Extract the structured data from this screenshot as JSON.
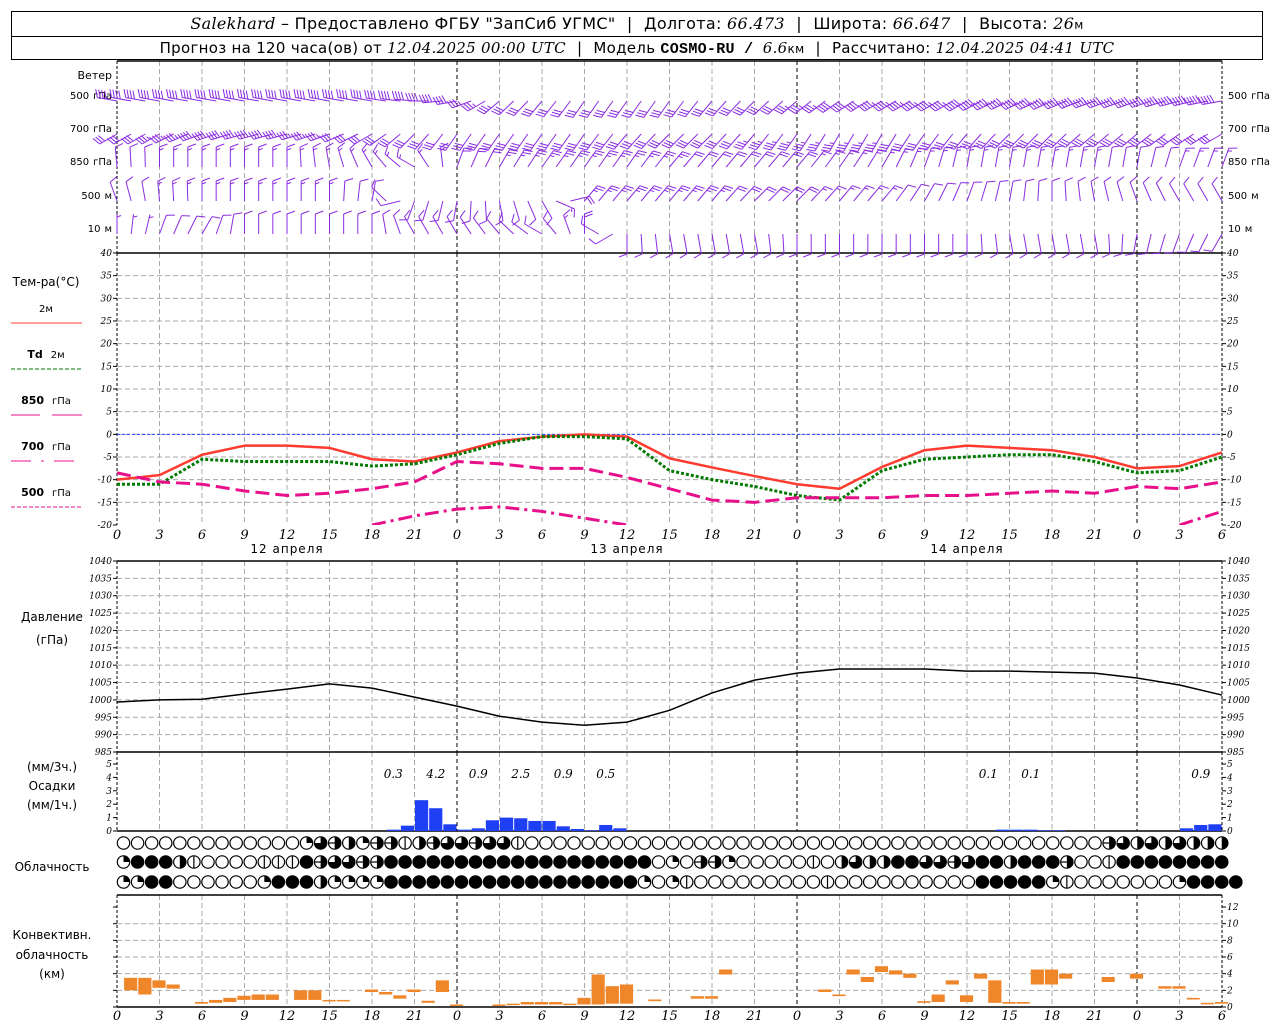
{
  "header": {
    "station": "Salekhard",
    "provider": "– Предоставлено ФГБУ \"ЗапСиб УГМС\"",
    "lon_label": "Долгота:",
    "lon": "66.473",
    "lat_label": "Широта:",
    "lat": "66.647",
    "alt_label": "Высота:",
    "alt": "26",
    "alt_unit": "м",
    "forecast_prefix": "Прогноз на 120 часа(ов) от",
    "forecast_start": "12.04.2025 00:00 UTC",
    "model_label": "Модель",
    "model": "COSMO-RU / ",
    "model_res": "6.6",
    "model_unit": "км",
    "calc_label": "Рассчитано:",
    "calc_time": "12.04.2025 04:41 UTC"
  },
  "axis": {
    "hour_labels": [
      "0",
      "3",
      "6",
      "9",
      "12",
      "15",
      "18",
      "21",
      "0",
      "3",
      "6",
      "9",
      "12",
      "15",
      "18",
      "21",
      "0",
      "3",
      "6",
      "9",
      "12",
      "15",
      "18",
      "21",
      "0",
      "3",
      "6"
    ],
    "date_labels": [
      "12 апреля",
      "13 апреля",
      "14 апреля"
    ],
    "date_hours": [
      12,
      36,
      60
    ]
  },
  "wind": {
    "title": "Ветер",
    "color": "#8a2be2",
    "levels": [
      {
        "num": "500",
        "unit": "гПа",
        "dir": [
          280,
          280,
          280,
          280,
          280,
          280,
          280,
          275,
          260,
          230,
          220,
          215,
          215,
          215,
          220,
          225,
          230,
          235,
          240,
          240,
          240,
          245,
          245,
          250,
          250,
          255,
          260
        ],
        "spd": [
          40,
          40,
          40,
          40,
          40,
          40,
          40,
          40,
          40,
          35,
          30,
          30,
          30,
          30,
          30,
          30,
          35,
          40,
          45,
          45,
          50,
          50,
          50,
          50,
          50,
          50,
          50
        ]
      },
      {
        "num": "700",
        "unit": "гПа",
        "dir": [
          240,
          240,
          250,
          255,
          255,
          250,
          240,
          225,
          215,
          215,
          215,
          215,
          220,
          225,
          225,
          220,
          215,
          210,
          210,
          215,
          220,
          225,
          225,
          230,
          230,
          235,
          240
        ],
        "spd": [
          30,
          35,
          40,
          40,
          40,
          35,
          30,
          30,
          30,
          30,
          30,
          30,
          30,
          30,
          30,
          35,
          35,
          35,
          35,
          30,
          30,
          30,
          30,
          30,
          30,
          30,
          30
        ]
      },
      {
        "num": "850",
        "unit": "гПа",
        "dir": [
          355,
          0,
          0,
          0,
          0,
          350,
          330,
          300,
          20,
          30,
          35,
          35,
          35,
          40,
          40,
          40,
          40,
          35,
          30,
          20,
          10,
          10,
          10,
          10,
          10,
          20,
          20
        ],
        "spd": [
          10,
          15,
          15,
          15,
          15,
          15,
          15,
          15,
          20,
          25,
          25,
          25,
          25,
          25,
          20,
          20,
          20,
          15,
          15,
          15,
          15,
          15,
          15,
          15,
          10,
          15,
          15
        ]
      },
      {
        "num": "500",
        "unit": "м",
        "dir": [
          340,
          355,
          0,
          0,
          0,
          0,
          10,
          200,
          190,
          170,
          150,
          40,
          40,
          40,
          40,
          45,
          45,
          40,
          40,
          30,
          20,
          10,
          0,
          350,
          340,
          330,
          330
        ],
        "spd": [
          10,
          15,
          15,
          15,
          15,
          15,
          10,
          10,
          10,
          10,
          10,
          25,
          25,
          25,
          25,
          20,
          20,
          15,
          15,
          10,
          10,
          10,
          10,
          10,
          10,
          10,
          10
        ]
      },
      {
        "num": "10",
        "unit": "м",
        "dir": [
          0,
          20,
          30,
          0,
          0,
          0,
          0,
          330,
          330,
          320,
          300,
          0,
          180,
          170,
          170,
          170,
          180,
          180,
          180,
          180,
          180,
          170,
          170,
          170,
          190,
          200,
          210
        ],
        "spd": [
          5,
          10,
          10,
          10,
          10,
          10,
          10,
          10,
          10,
          10,
          10,
          20,
          10,
          10,
          10,
          10,
          10,
          10,
          10,
          10,
          10,
          10,
          10,
          10,
          10,
          10,
          10
        ]
      }
    ]
  },
  "chart_data": [
    {
      "type": "line",
      "title": "Тем-ра(°C)",
      "ylim": [
        -20,
        40
      ],
      "y_ticks": [
        40,
        35,
        30,
        25,
        20,
        15,
        10,
        5,
        0,
        -5,
        -10,
        -15,
        -20
      ],
      "x_hours": [
        0,
        3,
        6,
        9,
        12,
        15,
        18,
        21,
        24,
        27,
        30,
        33,
        36,
        39,
        42,
        45,
        48,
        51,
        54,
        57,
        60,
        63,
        66,
        69,
        72,
        75,
        78
      ],
      "zero_line_color": "#2040ff",
      "series": [
        {
          "name": "2м",
          "prefix": "",
          "color": "#ff3b30",
          "style": "solid",
          "values": [
            -10,
            -9,
            -4.5,
            -2.5,
            -2.5,
            -3,
            -5.5,
            -6,
            -4,
            -1.5,
            -0.5,
            0,
            -0.5,
            -5.3,
            -7.3,
            -9.2,
            -11,
            -12,
            -7.2,
            -3.5,
            -2.5,
            -3,
            -3.5,
            -5,
            -7.5,
            -7,
            -4
          ]
        },
        {
          "name": "2м",
          "prefix": "Td",
          "color": "#007a00",
          "style": "dotted",
          "values": [
            -11,
            -11,
            -5.5,
            -6,
            -6,
            -6,
            -7,
            -6.5,
            -4.5,
            -2,
            -0.5,
            -0.5,
            -1,
            -8,
            -10,
            -11.5,
            -13.5,
            -14.5,
            -8,
            -5.5,
            -5,
            -4.5,
            -4.5,
            -6,
            -8.5,
            -8,
            -5
          ]
        },
        {
          "name": "гПа",
          "prefix": "850",
          "color": "#e8108a",
          "style": "longdash",
          "values": [
            -8.5,
            -10.5,
            -11,
            -12.5,
            -13.5,
            -13,
            -12,
            -10.5,
            -6,
            -6.5,
            -7.5,
            -7.5,
            -9.5,
            -12,
            -14.5,
            -15,
            -14,
            -14,
            -14,
            -13.5,
            -13.5,
            -13,
            -12.5,
            -13,
            -11.5,
            -12,
            -10.5
          ]
        },
        {
          "name": "гПа",
          "prefix": "700",
          "color": "#e8108a",
          "style": "dashdot",
          "values": [
            null,
            null,
            null,
            null,
            null,
            null,
            -20,
            -18,
            -16.5,
            -16,
            -17,
            -18.5,
            -20,
            null,
            null,
            null,
            null,
            null,
            null,
            null,
            null,
            null,
            null,
            null,
            null,
            -20,
            -17
          ]
        },
        {
          "name": "гПа",
          "prefix": "500",
          "color": "#e8108a",
          "style": "dashed",
          "values": []
        }
      ]
    },
    {
      "type": "line",
      "title": "Давление",
      "unit": "(гПа)",
      "ylim": [
        985,
        1040
      ],
      "y_ticks": [
        1040,
        1035,
        1030,
        1025,
        1020,
        1015,
        1010,
        1005,
        1000,
        995,
        990,
        985
      ],
      "x_hours": [
        0,
        3,
        6,
        9,
        12,
        15,
        18,
        21,
        24,
        27,
        30,
        33,
        36,
        39,
        42,
        45,
        48,
        51,
        54,
        57,
        60,
        63,
        66,
        69,
        72,
        75,
        78
      ],
      "values": [
        999.4,
        1000,
        1000.2,
        1001.7,
        1003.1,
        1004.6,
        1003.4,
        1000.8,
        998.2,
        995.3,
        993.6,
        992.7,
        993.6,
        997,
        1002,
        1005.7,
        1007.7,
        1008.9,
        1008.9,
        1008.9,
        1008.3,
        1008.3,
        1008,
        1007.7,
        1006.3,
        1004.3,
        1001.4
      ]
    },
    {
      "type": "bar",
      "title": "Осадки",
      "unit_3h": "(мм/3ч.)",
      "unit_1h": "(мм/1ч.)",
      "color": "#1f3ff5",
      "ylim": [
        0,
        5
      ],
      "y_ticks": [
        5,
        4,
        3,
        2,
        1,
        0
      ],
      "hourly": [
        [
          19,
          0.1
        ],
        [
          20,
          0.4
        ],
        [
          21,
          2.3
        ],
        [
          22,
          1.7
        ],
        [
          23,
          0.5
        ],
        [
          24,
          0.1
        ],
        [
          25,
          0.2
        ],
        [
          26,
          0.8
        ],
        [
          27,
          1.0
        ],
        [
          28,
          0.95
        ],
        [
          29,
          0.75
        ],
        [
          30,
          0.75
        ],
        [
          31,
          0.35
        ],
        [
          32,
          0.15
        ],
        [
          33,
          0.05
        ],
        [
          34,
          0.45
        ],
        [
          35,
          0.2
        ],
        [
          62,
          0.1
        ],
        [
          63,
          0.1
        ],
        [
          64,
          0.1
        ],
        [
          65,
          0.05
        ],
        [
          66,
          0.05
        ],
        [
          75,
          0.2
        ],
        [
          76,
          0.45
        ],
        [
          77,
          0.5
        ]
      ],
      "totals_3h": [
        {
          "h": 19.5,
          "v": "0.3"
        },
        {
          "h": 22.5,
          "v": "4.2"
        },
        {
          "h": 25.5,
          "v": "0.9"
        },
        {
          "h": 28.5,
          "v": "2.5"
        },
        {
          "h": 31.5,
          "v": "0.9"
        },
        {
          "h": 34.5,
          "v": "0.5"
        },
        {
          "h": 61.5,
          "v": "0.1"
        },
        {
          "h": 64.5,
          "v": "0.1"
        },
        {
          "h": 76.5,
          "v": "0.9"
        }
      ]
    },
    {
      "type": "table",
      "title": "Облачность",
      "legend": "0 clear, 1 quarter, 2 half, 3 three-quarter, 4 overcast, | and - partial symbols",
      "rows": [
        "000000000000013-21--|2-33-33|00000000000000000000000000000000000000000-32323222",
        "14442|0000|||4-33--4444444444444444444010--100000|023224433-3442444-00|44444444",
        "1144000000144421111444444444444444444101|000000000|0000000000444441|000000014444"
      ]
    },
    {
      "type": "bar",
      "title": "Конвективн.",
      "title2": "облачность",
      "unit": "(км)",
      "color": "#f0862a",
      "ylim": [
        0,
        13
      ],
      "y_ticks": [
        12,
        10,
        8,
        6,
        4,
        2,
        0
      ],
      "boxes": [
        [
          0.5,
          2.0,
          3.5
        ],
        [
          1.5,
          1.5,
          3.5
        ],
        [
          2.5,
          2.3,
          3.2
        ],
        [
          3.5,
          2.2,
          2.7
        ],
        [
          5.5,
          0.4,
          0.6
        ],
        [
          6.5,
          0.5,
          0.85
        ],
        [
          7.5,
          0.6,
          1.1
        ],
        [
          8.5,
          0.85,
          1.35
        ],
        [
          9.5,
          0.85,
          1.5
        ],
        [
          10.5,
          0.85,
          1.5
        ],
        [
          12.5,
          0.85,
          2.0
        ],
        [
          13.5,
          0.85,
          2.0
        ],
        [
          14.5,
          0.7,
          0.85
        ],
        [
          15.5,
          0.7,
          0.85
        ],
        [
          17.5,
          1.8,
          2.1
        ],
        [
          18.5,
          1.5,
          1.8
        ],
        [
          19.5,
          1.0,
          1.4
        ],
        [
          20.5,
          1.8,
          2.1
        ],
        [
          21.5,
          0.5,
          0.75
        ],
        [
          22.5,
          1.8,
          3.2
        ],
        [
          23.5,
          0.2,
          0.3
        ],
        [
          26.5,
          0.2,
          0.3
        ],
        [
          27.5,
          0.3,
          0.4
        ],
        [
          28.5,
          0.3,
          0.6
        ],
        [
          29.5,
          0.3,
          0.6
        ],
        [
          30.5,
          0.3,
          0.6
        ],
        [
          31.5,
          0.3,
          0.4
        ],
        [
          32.5,
          0.3,
          1.1
        ],
        [
          33.5,
          0.3,
          3.9
        ],
        [
          34.5,
          0.4,
          2.5
        ],
        [
          35.5,
          0.4,
          2.7
        ],
        [
          37.5,
          0.7,
          0.9
        ],
        [
          40.5,
          1.0,
          1.3
        ],
        [
          41.5,
          1.0,
          1.3
        ],
        [
          42.5,
          3.9,
          4.5
        ],
        [
          49.5,
          1.8,
          2.1
        ],
        [
          50.5,
          1.3,
          1.5
        ],
        [
          51.5,
          3.9,
          4.5
        ],
        [
          52.5,
          3.0,
          3.6
        ],
        [
          53.5,
          4.2,
          4.9
        ],
        [
          54.5,
          3.9,
          4.4
        ],
        [
          55.5,
          3.5,
          4.0
        ],
        [
          56.5,
          0.5,
          0.7
        ],
        [
          57.5,
          0.6,
          1.5
        ],
        [
          58.5,
          2.7,
          3.2
        ],
        [
          59.5,
          0.6,
          1.4
        ],
        [
          60.5,
          3.4,
          4.0
        ],
        [
          61.5,
          0.5,
          3.2
        ],
        [
          62.5,
          0.4,
          0.6
        ],
        [
          63.5,
          0.4,
          0.6
        ],
        [
          64.5,
          2.7,
          4.5
        ],
        [
          65.5,
          2.7,
          4.5
        ],
        [
          66.5,
          3.4,
          4.0
        ],
        [
          69.5,
          3.0,
          3.6
        ],
        [
          71.5,
          3.4,
          4.0
        ],
        [
          73.5,
          2.2,
          2.5
        ],
        [
          74.5,
          2.2,
          2.5
        ],
        [
          75.5,
          0.9,
          1.1
        ],
        [
          76.5,
          0.4,
          0.5
        ],
        [
          77.5,
          0.4,
          0.6
        ]
      ]
    }
  ]
}
